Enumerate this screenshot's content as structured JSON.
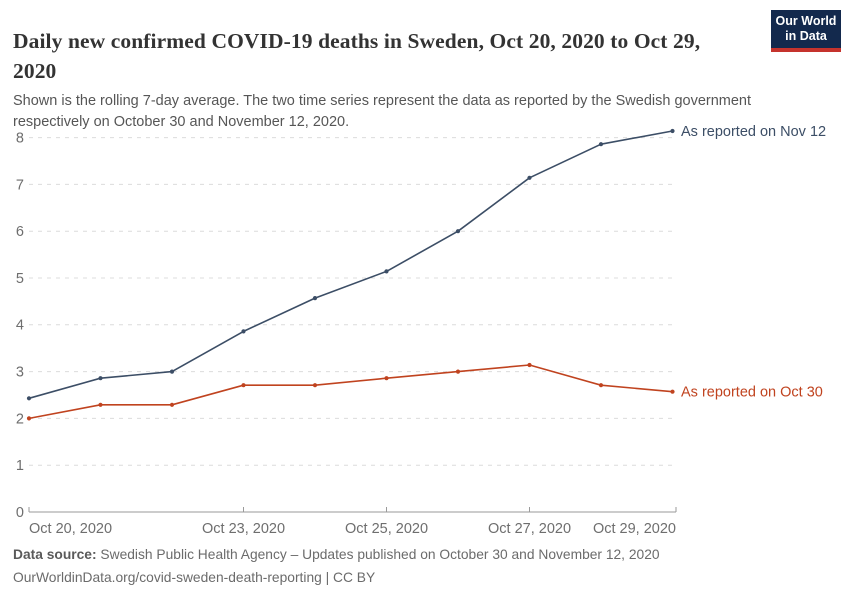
{
  "header": {
    "title": "Daily new confirmed COVID-19 deaths in Sweden, Oct 20, 2020 to Oct 29, 2020",
    "subtitle": "Shown is the rolling 7-day average. The two time series represent the data as reported by the Swedish government respectively on October 30 and November 12, 2020.",
    "logo": {
      "line1": "Our World",
      "line2": "in Data"
    }
  },
  "footer": {
    "source_label": "Data source:",
    "source_text": " Swedish Public Health Agency – Updates published on October 30 and November 12, 2020",
    "link_line": "OurWorldinData.org/covid-sweden-death-reporting | CC BY"
  },
  "colors": {
    "series_nov12": "#3C4E66",
    "series_oct30": "#C0431F",
    "grid": "#dcdcdc",
    "axis": "#9a9a9a",
    "tick_text": "#6e6e6e",
    "logo_bg": "#13294d",
    "logo_bar": "#c5332d"
  },
  "chart_data": {
    "type": "line",
    "title": "Daily new confirmed COVID-19 deaths in Sweden, Oct 20, 2020 to Oct 29, 2020",
    "x": [
      "Oct 20, 2020",
      "Oct 21, 2020",
      "Oct 22, 2020",
      "Oct 23, 2020",
      "Oct 24, 2020",
      "Oct 25, 2020",
      "Oct 26, 2020",
      "Oct 27, 2020",
      "Oct 28, 2020",
      "Oct 29, 2020"
    ],
    "series": [
      {
        "name": "As reported on Nov 12",
        "color": "#3C4E66",
        "values": [
          2.43,
          2.86,
          3.0,
          3.86,
          4.57,
          5.14,
          6.0,
          7.14,
          7.86,
          8.14
        ]
      },
      {
        "name": "As reported on Oct 30",
        "color": "#C0431F",
        "values": [
          2.0,
          2.29,
          2.29,
          2.71,
          2.71,
          2.86,
          3.0,
          3.14,
          2.71,
          2.57
        ]
      }
    ],
    "ylim": [
      0,
      8
    ],
    "yticks": [
      0,
      1,
      2,
      3,
      4,
      5,
      6,
      7,
      8
    ],
    "xticks": [
      {
        "index": 0,
        "label": "Oct 20, 2020",
        "anchor": "start"
      },
      {
        "index": 3,
        "label": "Oct 23, 2020",
        "anchor": "middle"
      },
      {
        "index": 5,
        "label": "Oct 25, 2020",
        "anchor": "middle"
      },
      {
        "index": 7,
        "label": "Oct 27, 2020",
        "anchor": "middle"
      },
      {
        "index": 9,
        "label": "Oct 29, 2020",
        "anchor": "end"
      }
    ],
    "grid": "dashed-horizontal",
    "legend_position": "end-of-line-labels"
  }
}
